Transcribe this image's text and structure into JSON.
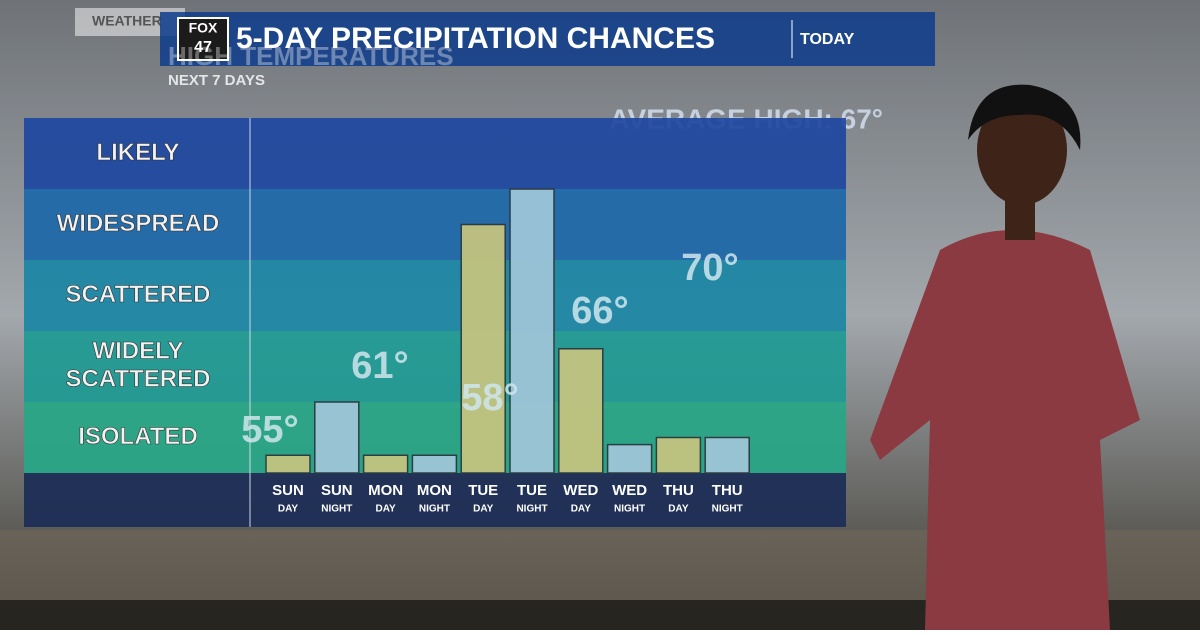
{
  "chart_data": {
    "type": "bar",
    "title": "5-DAY PRECIPITATION CHANCES",
    "subtitle": "TODAY",
    "station": [
      "FOX",
      "47"
    ],
    "ghost_texts": [
      "WEATHER",
      "HIGH TEMPERATURES",
      "NEXT 7 DAYS",
      "AVERAGE HIGH: 67°"
    ],
    "categories": [
      "SUN",
      "SUN",
      "MON",
      "MON",
      "TUE",
      "TUE",
      "WED",
      "WED",
      "THU",
      "THU"
    ],
    "category_sublabels": [
      "DAY",
      "NIGHT",
      "DAY",
      "NIGHT",
      "DAY",
      "NIGHT",
      "DAY",
      "NIGHT",
      "DAY",
      "NIGHT"
    ],
    "values": [
      0.25,
      1.0,
      0.25,
      0.25,
      3.5,
      4.0,
      1.75,
      0.4,
      0.5,
      0.5
    ],
    "day_color": "#c3c47f",
    "night_color": "#9dc5d8",
    "ylim": [
      0,
      5
    ],
    "yticks": [
      {
        "value": 0.5,
        "label": "ISOLATED"
      },
      {
        "value": 1.5,
        "label": "WIDELY SCATTERED"
      },
      {
        "value": 2.5,
        "label": "SCATTERED"
      },
      {
        "value": 3.5,
        "label": "WIDESPREAD"
      },
      {
        "value": 4.5,
        "label": "LIKELY"
      }
    ],
    "band_colors": [
      "#27a787",
      "#1e9a94",
      "#1a86a4",
      "#1b67a8",
      "#1d47a0"
    ],
    "annotations": [
      "55°",
      "61°",
      "58°",
      "66°",
      "70°"
    ]
  }
}
